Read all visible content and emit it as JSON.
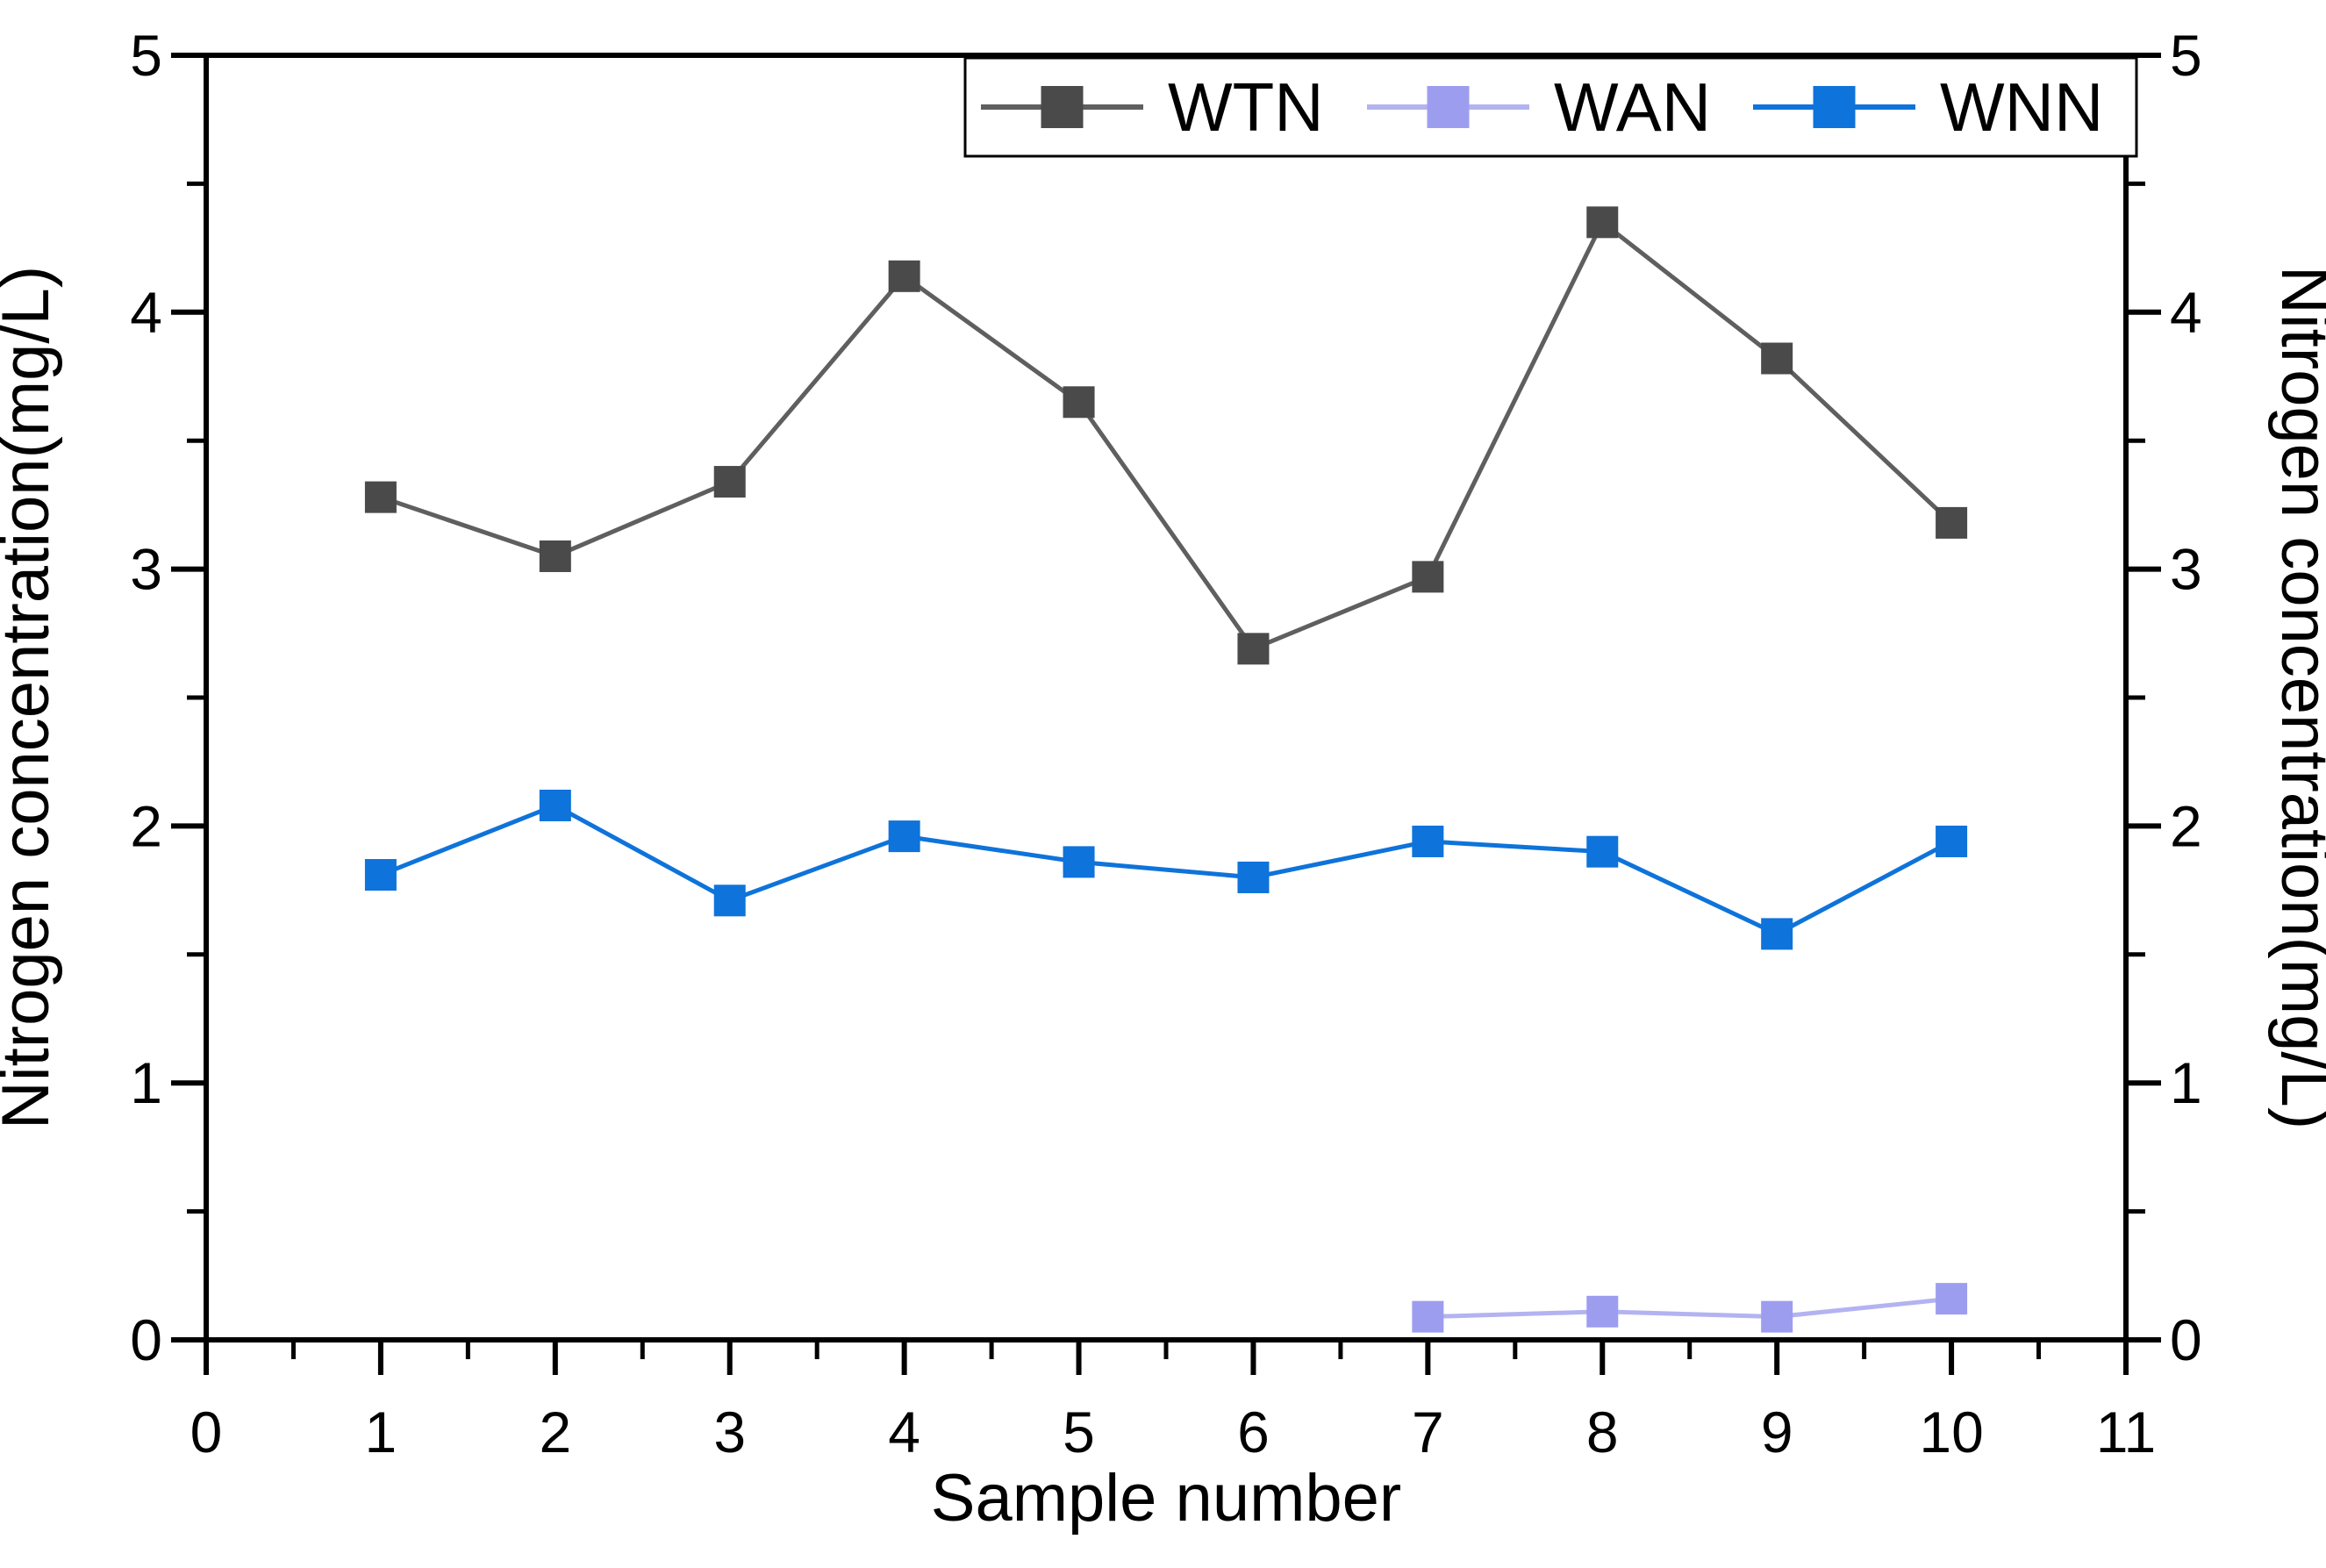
{
  "chart_data": {
    "type": "line",
    "title": "",
    "x": [
      1,
      2,
      3,
      4,
      5,
      6,
      7,
      8,
      9,
      10
    ],
    "series": [
      {
        "name": "WTN",
        "values": [
          3.28,
          3.05,
          3.34,
          4.14,
          3.65,
          2.69,
          2.97,
          4.35,
          3.82,
          3.18
        ],
        "line_color": "#5f5f5f",
        "marker_color": "#4a4a4a"
      },
      {
        "name": "WAN",
        "values": [
          null,
          null,
          null,
          null,
          null,
          null,
          0.09,
          0.11,
          0.09,
          0.16
        ],
        "line_color": "#b3b3f2",
        "marker_color": "#9d9df0"
      },
      {
        "name": "WNN",
        "values": [
          1.81,
          2.08,
          1.71,
          1.96,
          1.86,
          1.8,
          1.94,
          1.9,
          1.58,
          1.94
        ],
        "line_color": "#0e73da",
        "marker_color": "#0e73da"
      }
    ],
    "xlabel": "Sample number",
    "ylabel_left": "Nitrogen concentration(mg/L)",
    "ylabel_right": "Nitrogen concentration(mg/L)",
    "xlim": [
      0,
      11
    ],
    "ylim": [
      0,
      5
    ],
    "x_major_step": 1,
    "x_minor_step": 0.5,
    "y_major_step": 1,
    "y_minor_step": 0.5,
    "x_tick_labels": [
      "0",
      "1",
      "2",
      "3",
      "4",
      "5",
      "6",
      "7",
      "8",
      "9",
      "10",
      "11"
    ],
    "y_tick_labels": [
      "0",
      "1",
      "2",
      "3",
      "4",
      "5"
    ],
    "grid": false,
    "legend_position": "top-right-inside",
    "legend_labels": [
      "WTN",
      "WAN",
      "WNN"
    ],
    "marker_shape": "square",
    "axis_color": "#000000",
    "background": "#ffffff"
  }
}
